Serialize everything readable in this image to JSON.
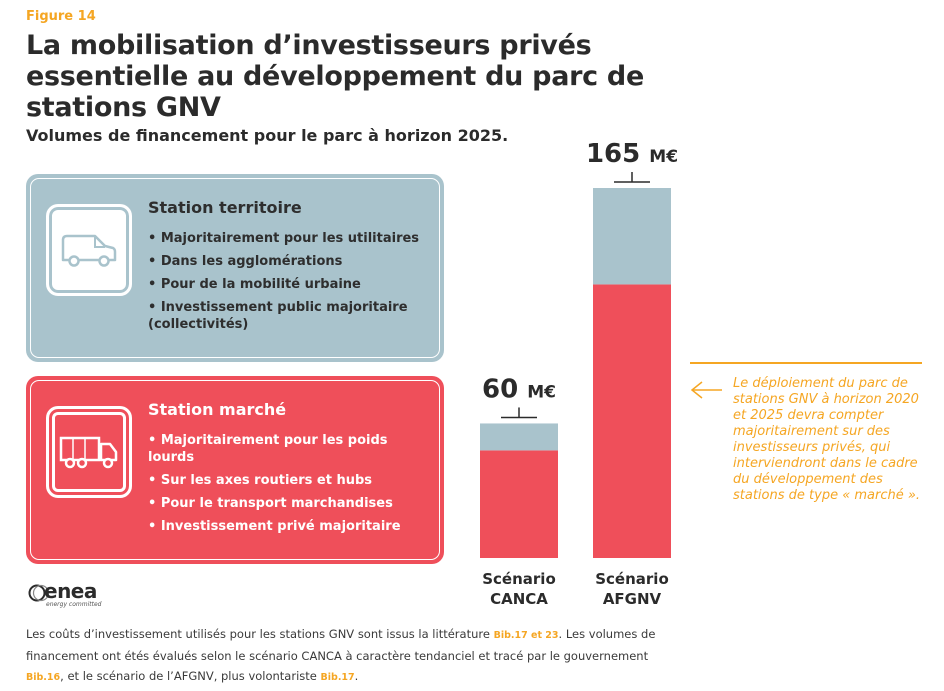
{
  "figure_label": "Figure 14",
  "title": "La mobilisation d’investisseurs privés essentielle au développement du parc de stations GNV",
  "subtitle": "Volumes de financement pour le parc à horizon 2025.",
  "cards": [
    {
      "title": "Station territoire",
      "icon": "van-icon",
      "color": "#a9c3cc",
      "bullets": [
        "• Majoritairement pour les utilitaires",
        "• Dans les agglomérations",
        "• Pour de la mobilité urbaine",
        "• Investissement public majoritaire (collectivités)"
      ]
    },
    {
      "title": "Station marché",
      "icon": "truck-icon",
      "color": "#ef4f5a",
      "bullets": [
        "• Majoritairement pour les poids lourds",
        "• Sur les axes routiers et hubs",
        "• Pour le transport marchandises",
        "• Investissement privé majoritaire"
      ]
    }
  ],
  "chart_data": {
    "type": "bar",
    "stacked": true,
    "categories": [
      "Scénario\nCANCA",
      "Scénario\nAFGNV"
    ],
    "category_lines": [
      [
        "Scénario",
        "CANCA"
      ],
      [
        "Scénario",
        "AFGNV"
      ]
    ],
    "totals": [
      60,
      165
    ],
    "total_labels": [
      {
        "number": "60",
        "unit": "M€"
      },
      {
        "number": "165",
        "unit": "M€"
      }
    ],
    "series": [
      {
        "key": "territoire",
        "color": "#a9c3cc",
        "values": [
          12,
          43
        ]
      },
      {
        "key": "marche",
        "color": "#ef4f5a",
        "values": [
          48,
          122
        ]
      }
    ],
    "ylim": [
      0,
      165
    ],
    "grid": false,
    "legend": "none"
  },
  "callout": "Le déploiement du parc de stations GNV à horizon 2020 et 2025 devra compter majoritairement sur des investisseurs privés, qui interviendront dans le cadre du développement des stations de type « marché ».",
  "logo": {
    "name": "enea",
    "tagline": "energy committed"
  },
  "footnote": {
    "p1": "Les coûts d’investissement utilisés pour les stations GNV sont issus la littérature ",
    "r1": "Bib.17 et 23",
    "p2": ". Les volumes de financement ont étés évalués selon le scénario CANCA à caractère tendanciel et tracé par le gouvernement ",
    "r2": "Bib.16",
    "p3": ", et le scénario de l’AFGNV, plus volontariste ",
    "r3": "Bib.17",
    "p4": "."
  },
  "colors": {
    "accent": "#f5a623",
    "blue": "#a9c3cc",
    "red": "#ef4f5a",
    "text": "#2b2b2b"
  }
}
